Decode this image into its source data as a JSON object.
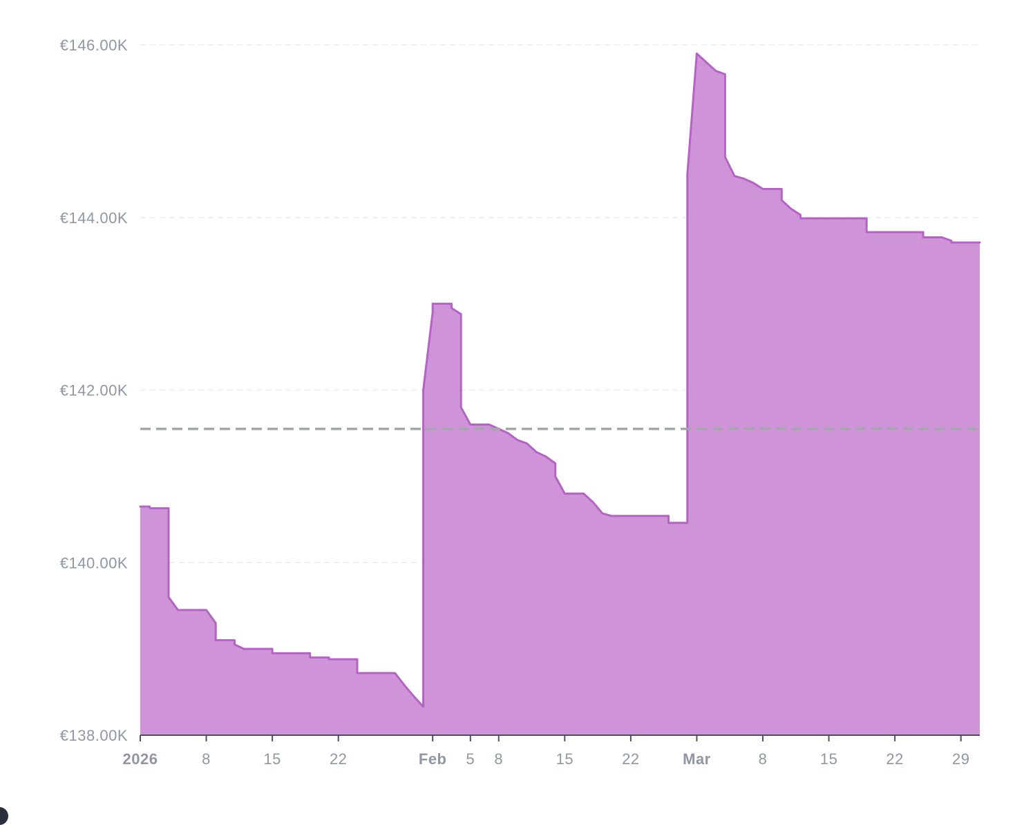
{
  "chart_data": {
    "type": "area",
    "title": "",
    "xlabel": "",
    "ylabel": "",
    "ylim": [
      138000,
      146000
    ],
    "xlim": [
      "2026-01-01",
      "2026-03-31"
    ],
    "y_ticks": [
      {
        "value": 138000,
        "label": "€138.00K"
      },
      {
        "value": 140000,
        "label": "€140.00K"
      },
      {
        "value": 142000,
        "label": "€142.00K"
      },
      {
        "value": 144000,
        "label": "€144.00K"
      },
      {
        "value": 146000,
        "label": "€146.00K"
      }
    ],
    "x_ticks": [
      {
        "date": "2026-01-01",
        "label": "2026",
        "bold": true
      },
      {
        "date": "2026-01-08",
        "label": "8",
        "bold": false
      },
      {
        "date": "2026-01-15",
        "label": "15",
        "bold": false
      },
      {
        "date": "2026-01-22",
        "label": "22",
        "bold": false
      },
      {
        "date": "2026-02-01",
        "label": "Feb",
        "bold": true
      },
      {
        "date": "2026-02-05",
        "label": "5",
        "bold": false
      },
      {
        "date": "2026-02-08",
        "label": "8",
        "bold": false
      },
      {
        "date": "2026-02-15",
        "label": "15",
        "bold": false
      },
      {
        "date": "2026-02-22",
        "label": "22",
        "bold": false
      },
      {
        "date": "2026-03-01",
        "label": "Mar",
        "bold": true
      },
      {
        "date": "2026-03-08",
        "label": "8",
        "bold": false
      },
      {
        "date": "2026-03-15",
        "label": "15",
        "bold": false
      },
      {
        "date": "2026-03-22",
        "label": "22",
        "bold": false
      },
      {
        "date": "2026-03-29",
        "label": "29",
        "bold": false
      }
    ],
    "reference_line": {
      "value": 141550,
      "style": "dashed",
      "color": "#a3a6ab"
    },
    "grid": true,
    "colors": {
      "area_fill": "#cf94d8",
      "area_stroke": "#b463c4",
      "grid": "#e9ebef",
      "axis": "#4a4f5a",
      "tick_label": "#9096a2"
    },
    "series": [
      {
        "points": [
          [
            "2026-01-01",
            140650
          ],
          [
            "2026-01-02",
            140650
          ],
          [
            "2026-01-02",
            140630
          ],
          [
            "2026-01-04",
            140630
          ],
          [
            "2026-01-04",
            140450
          ],
          [
            "2026-01-04",
            139600
          ],
          [
            "2026-01-05",
            139450
          ],
          [
            "2026-01-08",
            139450
          ],
          [
            "2026-01-09",
            139300
          ],
          [
            "2026-01-09",
            139100
          ],
          [
            "2026-01-11",
            139100
          ],
          [
            "2026-01-11",
            139050
          ],
          [
            "2026-01-12",
            139000
          ],
          [
            "2026-01-15",
            139000
          ],
          [
            "2026-01-15",
            138950
          ],
          [
            "2026-01-19",
            138950
          ],
          [
            "2026-01-19",
            138900
          ],
          [
            "2026-01-21",
            138900
          ],
          [
            "2026-01-21",
            138880
          ],
          [
            "2026-01-24",
            138880
          ],
          [
            "2026-01-24",
            138720
          ],
          [
            "2026-01-28",
            138720
          ],
          [
            "2026-01-29",
            138580
          ],
          [
            "2026-01-30",
            138450
          ],
          [
            "2026-01-31",
            138330
          ],
          [
            "2026-01-31",
            139000
          ],
          [
            "2026-01-31",
            142000
          ],
          [
            "2026-02-01",
            142900
          ],
          [
            "2026-02-01",
            143000
          ],
          [
            "2026-02-03",
            143000
          ],
          [
            "2026-02-03",
            142950
          ],
          [
            "2026-02-04",
            142880
          ],
          [
            "2026-02-04",
            142500
          ],
          [
            "2026-02-04",
            141800
          ],
          [
            "2026-02-05",
            141600
          ],
          [
            "2026-02-07",
            141600
          ],
          [
            "2026-02-08",
            141550
          ],
          [
            "2026-02-09",
            141500
          ],
          [
            "2026-02-10",
            141420
          ],
          [
            "2026-02-11",
            141380
          ],
          [
            "2026-02-12",
            141280
          ],
          [
            "2026-02-13",
            141230
          ],
          [
            "2026-02-14",
            141150
          ],
          [
            "2026-02-14",
            141000
          ],
          [
            "2026-02-15",
            140800
          ],
          [
            "2026-02-17",
            140800
          ],
          [
            "2026-02-18",
            140700
          ],
          [
            "2026-02-19",
            140570
          ],
          [
            "2026-02-20",
            140540
          ],
          [
            "2026-02-26",
            140540
          ],
          [
            "2026-02-26",
            140460
          ],
          [
            "2026-02-28",
            140460
          ],
          [
            "2026-02-28",
            141200
          ],
          [
            "2026-02-28",
            144500
          ],
          [
            "2026-03-01",
            145900
          ],
          [
            "2026-03-02",
            145800
          ],
          [
            "2026-03-03",
            145700
          ],
          [
            "2026-03-04",
            145660
          ],
          [
            "2026-03-04",
            145300
          ],
          [
            "2026-03-04",
            144700
          ],
          [
            "2026-03-05",
            144480
          ],
          [
            "2026-03-06",
            144450
          ],
          [
            "2026-03-07",
            144400
          ],
          [
            "2026-03-08",
            144330
          ],
          [
            "2026-03-10",
            144330
          ],
          [
            "2026-03-10",
            144200
          ],
          [
            "2026-03-11",
            144100
          ],
          [
            "2026-03-12",
            144030
          ],
          [
            "2026-03-12",
            143990
          ],
          [
            "2026-03-19",
            143990
          ],
          [
            "2026-03-19",
            143830
          ],
          [
            "2026-03-25",
            143830
          ],
          [
            "2026-03-25",
            143770
          ],
          [
            "2026-03-27",
            143770
          ],
          [
            "2026-03-28",
            143730
          ],
          [
            "2026-03-28",
            143710
          ],
          [
            "2026-03-31",
            143710
          ]
        ]
      }
    ]
  }
}
